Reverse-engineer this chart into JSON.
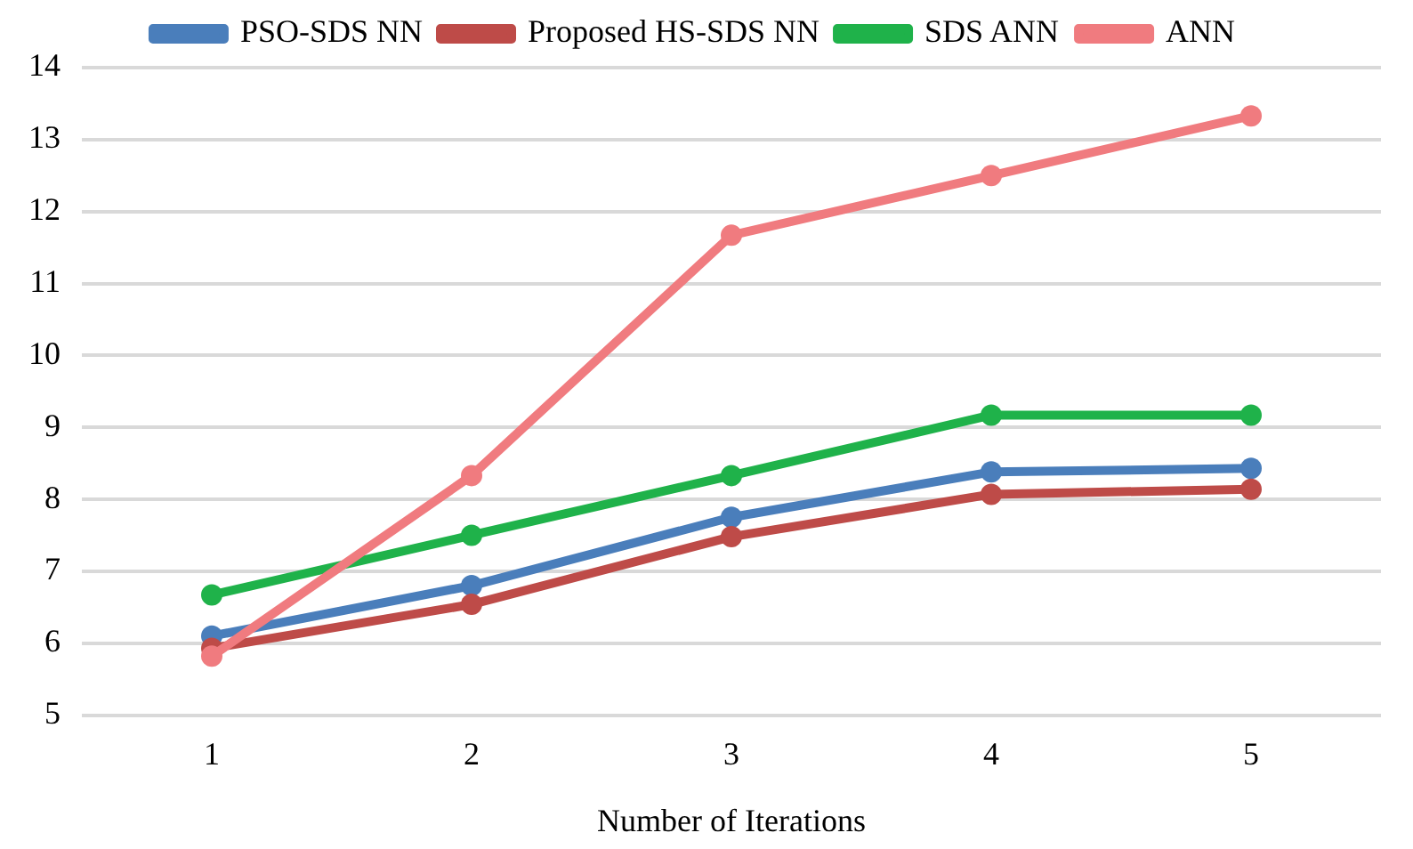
{
  "chart_data": {
    "type": "line",
    "xlabel": "Number of Iterations",
    "categories": [
      "1",
      "2",
      "3",
      "4",
      "5"
    ],
    "series": [
      {
        "name": "PSO-SDS NN",
        "color": "#4a7ebb",
        "values": [
          6.1,
          6.8,
          7.75,
          8.38,
          8.43
        ]
      },
      {
        "name": "Proposed HS-SDS NN",
        "color": "#be4b48",
        "values": [
          5.93,
          6.54,
          7.48,
          8.07,
          8.14
        ]
      },
      {
        "name": "SDS ANN",
        "color": "#1fb24a",
        "values": [
          6.67,
          7.5,
          8.33,
          9.17,
          9.17
        ]
      },
      {
        "name": "ANN",
        "color": "#f07b7f",
        "values": [
          5.82,
          8.33,
          11.67,
          12.5,
          13.33
        ]
      }
    ],
    "ylim": [
      5,
      14
    ],
    "yticks": [
      5,
      6,
      7,
      8,
      9,
      10,
      11,
      12,
      13,
      14
    ],
    "grid": "y",
    "legend": "top",
    "marker": "circle",
    "line_style": "solid"
  }
}
